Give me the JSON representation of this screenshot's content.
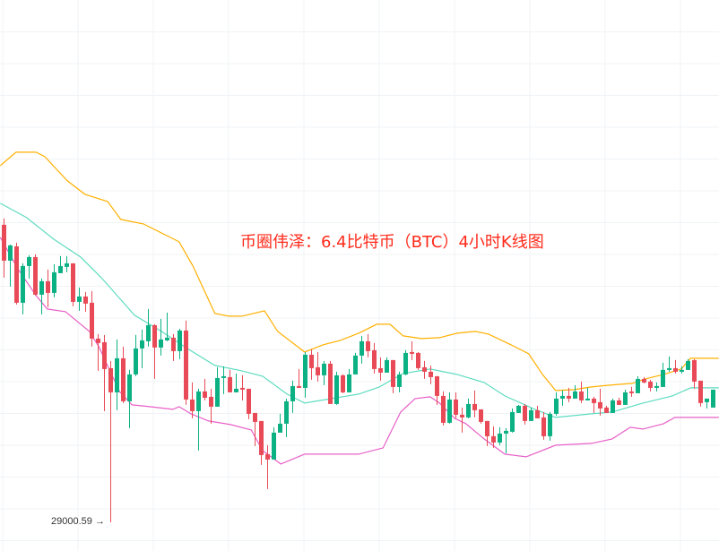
{
  "chart_data": {
    "type": "candlestick",
    "title": "币圈伟泽：6.4比特币（BTC）4小时K线图",
    "grid": true,
    "colors": {
      "up": "#0cb183",
      "down": "#e84b57",
      "upper_band": "#ffb000",
      "middle_band": "#5fdcc0",
      "lower_band": "#e860c8",
      "title": "#ff2a1a",
      "grid": "#f0f3f6"
    },
    "annotation": {
      "label": "29000.59",
      "arrow": "→",
      "candle_index": 17,
      "price": 29000.59
    },
    "candles_ohlc": [
      [
        30661,
        30696,
        30366,
        30461
      ],
      [
        30461,
        30551,
        30316,
        30546
      ],
      [
        30541,
        30561,
        30216,
        30226
      ],
      [
        30226,
        30446,
        30161,
        30431
      ],
      [
        30431,
        30491,
        30361,
        30481
      ],
      [
        30481,
        30496,
        30266,
        30271
      ],
      [
        30271,
        30361,
        30161,
        30346
      ],
      [
        30346,
        30411,
        30201,
        30281
      ],
      [
        30281,
        30441,
        30256,
        30396
      ],
      [
        30391,
        30486,
        30391,
        30431
      ],
      [
        30426,
        30486,
        30396,
        30446
      ],
      [
        30446,
        30446,
        30206,
        30231
      ],
      [
        30231,
        30311,
        30181,
        30261
      ],
      [
        30261,
        30286,
        30176,
        30221
      ],
      [
        30226,
        30291,
        29981,
        30026
      ],
      [
        30026,
        30051,
        29846,
        30001
      ],
      [
        30006,
        30046,
        29621,
        29856
      ],
      [
        29861,
        29901,
        29000.59,
        29726
      ],
      [
        29726,
        30021,
        29626,
        29916
      ],
      [
        29916,
        29981,
        29666,
        29676
      ],
      [
        29676,
        29851,
        29526,
        29826
      ],
      [
        29826,
        30046,
        29816,
        29971
      ],
      [
        29971,
        30076,
        29861,
        30016
      ],
      [
        30011,
        30191,
        29981,
        30101
      ],
      [
        30101,
        30106,
        29801,
        29976
      ],
      [
        29976,
        30136,
        29931,
        30021
      ],
      [
        30016,
        30171,
        30011,
        30031
      ],
      [
        30031,
        30051,
        29901,
        29956
      ],
      [
        29956,
        30081,
        29911,
        30071
      ],
      [
        30071,
        30126,
        29656,
        29686
      ],
      [
        29686,
        29781,
        29581,
        29621
      ],
      [
        29621,
        29746,
        29401,
        29731
      ],
      [
        29731,
        29801,
        29681,
        29696
      ],
      [
        29701,
        29746,
        29551,
        29646
      ],
      [
        29646,
        29866,
        29646,
        29806
      ],
      [
        29806,
        29871,
        29716,
        29816
      ],
      [
        29811,
        29851,
        29726,
        29726
      ],
      [
        29726,
        29831,
        29726,
        29746
      ],
      [
        29751,
        29821,
        29681,
        29741
      ],
      [
        29746,
        29746,
        29576,
        29606
      ],
      [
        29611,
        29611,
        29426,
        29561
      ],
      [
        29566,
        29566,
        29321,
        29376
      ],
      [
        29381,
        29431,
        29186,
        29351
      ],
      [
        29351,
        29531,
        29351,
        29501
      ],
      [
        29501,
        29606,
        29501,
        29551
      ],
      [
        29551,
        29691,
        29476,
        29676
      ],
      [
        29676,
        29791,
        29611,
        29761
      ],
      [
        29761,
        29856,
        29751,
        29751
      ],
      [
        29751,
        29951,
        29696,
        29936
      ],
      [
        29936,
        29966,
        29796,
        29861
      ],
      [
        29866,
        29951,
        29786,
        29821
      ],
      [
        29821,
        29901,
        29766,
        29886
      ],
      [
        29886,
        29901,
        29661,
        29661
      ],
      [
        29661,
        29841,
        29656,
        29821
      ],
      [
        29821,
        29826,
        29721,
        29726
      ],
      [
        29726,
        29856,
        29726,
        29826
      ],
      [
        29826,
        29946,
        29826,
        29931
      ],
      [
        29931,
        30041,
        29886,
        30011
      ],
      [
        30011,
        30051,
        29921,
        29956
      ],
      [
        29961,
        30001,
        29831,
        29856
      ],
      [
        29861,
        29921,
        29791,
        29836
      ],
      [
        29836,
        29921,
        29836,
        29906
      ],
      [
        29906,
        29906,
        29721,
        29756
      ],
      [
        29756,
        29841,
        29726,
        29826
      ],
      [
        29826,
        29961,
        29821,
        29946
      ],
      [
        29951,
        30011,
        29906,
        29941
      ],
      [
        29946,
        29951,
        29851,
        29861
      ],
      [
        29866,
        29901,
        29801,
        29841
      ],
      [
        29841,
        29876,
        29771,
        29811
      ],
      [
        29816,
        29816,
        29656,
        29706
      ],
      [
        29706,
        29731,
        29541,
        29556
      ],
      [
        29556,
        29726,
        29551,
        29686
      ],
      [
        29686,
        29726,
        29581,
        29601
      ],
      [
        29601,
        29641,
        29501,
        29586
      ],
      [
        29586,
        29691,
        29581,
        29661
      ],
      [
        29661,
        29736,
        29586,
        29626
      ],
      [
        29631,
        29631,
        29551,
        29561
      ],
      [
        29566,
        29566,
        29426,
        29481
      ],
      [
        29481,
        29536,
        29416,
        29446
      ],
      [
        29446,
        29531,
        29431,
        29496
      ],
      [
        29496,
        29526,
        29386,
        29511
      ],
      [
        29506,
        29636,
        29501,
        29616
      ],
      [
        29611,
        29656,
        29611,
        29651
      ],
      [
        29651,
        29661,
        29546,
        29566
      ],
      [
        29566,
        29641,
        29566,
        29626
      ],
      [
        29626,
        29651,
        29581,
        29581
      ],
      [
        29586,
        29616,
        29461,
        29481
      ],
      [
        29481,
        29616,
        29456,
        29606
      ],
      [
        29606,
        29726,
        29596,
        29691
      ],
      [
        29691,
        29736,
        29651,
        29706
      ],
      [
        29706,
        29751,
        29671,
        29691
      ],
      [
        29691,
        29766,
        29691,
        29731
      ],
      [
        29731,
        29786,
        29666,
        29681
      ],
      [
        29681,
        29751,
        29681,
        29691
      ],
      [
        29691,
        29701,
        29611,
        29666
      ],
      [
        29671,
        29746,
        29596,
        29636
      ],
      [
        29641,
        29651,
        29611,
        29611
      ],
      [
        29611,
        29691,
        29611,
        29681
      ],
      [
        29681,
        29696,
        29656,
        29656
      ],
      [
        29656,
        29741,
        29656,
        29726
      ],
      [
        29731,
        29756,
        29701,
        29721
      ],
      [
        29721,
        29816,
        29721,
        29801
      ],
      [
        29801,
        29811,
        29776,
        29781
      ],
      [
        29786,
        29796,
        29731,
        29751
      ],
      [
        29751,
        29781,
        29731,
        29761
      ],
      [
        29756,
        29891,
        29756,
        29851
      ],
      [
        29851,
        29926,
        29841,
        29861
      ],
      [
        29861,
        29906,
        29831,
        29841
      ],
      [
        29841,
        29871,
        29831,
        29851
      ],
      [
        29851,
        29911,
        29851,
        29901
      ],
      [
        29906,
        29911,
        29746,
        29786
      ],
      [
        29791,
        29791,
        29646,
        29666
      ],
      [
        29671,
        29691,
        29636,
        29691
      ],
      [
        29641,
        29741,
        29641,
        29741
      ]
    ],
    "bollinger": {
      "upper": [
        [
          -0.6,
          30991
        ],
        [
          1.9,
          31066
        ],
        [
          5.1,
          31066
        ],
        [
          6.5,
          31041
        ],
        [
          10.1,
          30906
        ],
        [
          12.9,
          30831
        ],
        [
          16.5,
          30791
        ],
        [
          18.6,
          30691
        ],
        [
          22.2,
          30666
        ],
        [
          27.9,
          30566
        ],
        [
          30.1,
          30431
        ],
        [
          33.6,
          30166
        ],
        [
          35.8,
          30151
        ],
        [
          37.9,
          30151
        ],
        [
          41.5,
          30181
        ],
        [
          43.6,
          30066
        ],
        [
          47.9,
          29951
        ],
        [
          50.8,
          29991
        ],
        [
          53.6,
          30016
        ],
        [
          56.5,
          30056
        ],
        [
          59.4,
          30106
        ],
        [
          61.5,
          30106
        ],
        [
          63.6,
          30041
        ],
        [
          66.5,
          30026
        ],
        [
          69.4,
          30031
        ],
        [
          72.2,
          30056
        ],
        [
          75.1,
          30066
        ],
        [
          77.2,
          30051
        ],
        [
          80.8,
          29991
        ],
        [
          83.6,
          29941
        ],
        [
          85.8,
          29826
        ],
        [
          87.9,
          29736
        ],
        [
          90.8,
          29741
        ],
        [
          93.6,
          29756
        ],
        [
          96.5,
          29766
        ],
        [
          100.1,
          29776
        ],
        [
          102.2,
          29801
        ],
        [
          105.1,
          29826
        ],
        [
          107.9,
          29856
        ],
        [
          109.4,
          29916
        ],
        [
          113.9,
          29916
        ]
      ],
      "middle": [
        [
          -0.6,
          30781
        ],
        [
          3.6,
          30701
        ],
        [
          7.9,
          30581
        ],
        [
          12.2,
          30481
        ],
        [
          15.5,
          30366
        ],
        [
          20.8,
          30156
        ],
        [
          25.1,
          30066
        ],
        [
          29.4,
          29966
        ],
        [
          33.6,
          29876
        ],
        [
          37.9,
          29846
        ],
        [
          41.2,
          29816
        ],
        [
          45.1,
          29716
        ],
        [
          47.9,
          29666
        ],
        [
          52.2,
          29691
        ],
        [
          56.5,
          29716
        ],
        [
          59.8,
          29756
        ],
        [
          63.6,
          29831
        ],
        [
          67.9,
          29856
        ],
        [
          72.2,
          29826
        ],
        [
          76.5,
          29781
        ],
        [
          79.8,
          29706
        ],
        [
          84.6,
          29631
        ],
        [
          87.9,
          29586
        ],
        [
          93.6,
          29606
        ],
        [
          96.9,
          29616
        ],
        [
          101.8,
          29666
        ],
        [
          106.5,
          29706
        ],
        [
          109.4,
          29751
        ],
        [
          113.9,
          29751
        ]
      ],
      "lower": [
        [
          -0.6,
          30591
        ],
        [
          2.2,
          30416
        ],
        [
          5.1,
          30266
        ],
        [
          6.9,
          30191
        ],
        [
          9.8,
          30176
        ],
        [
          13.6,
          30066
        ],
        [
          15.1,
          29981
        ],
        [
          18.4,
          29731
        ],
        [
          20.4,
          29656
        ],
        [
          23.2,
          29646
        ],
        [
          26.9,
          29631
        ],
        [
          27.9,
          29646
        ],
        [
          29.8,
          29606
        ],
        [
          32.6,
          29566
        ],
        [
          36.1,
          29546
        ],
        [
          39.4,
          29516
        ],
        [
          41.2,
          29401
        ],
        [
          44.1,
          29326
        ],
        [
          47.9,
          29381
        ],
        [
          52.2,
          29381
        ],
        [
          56.5,
          29381
        ],
        [
          60.4,
          29416
        ],
        [
          63.2,
          29616
        ],
        [
          65.5,
          29691
        ],
        [
          67.9,
          29701
        ],
        [
          69.4,
          29666
        ],
        [
          71.8,
          29581
        ],
        [
          73.6,
          29551
        ],
        [
          76.5,
          29466
        ],
        [
          79.8,
          29381
        ],
        [
          83.2,
          29366
        ],
        [
          87.9,
          29431
        ],
        [
          93.6,
          29441
        ],
        [
          96.9,
          29466
        ],
        [
          99.8,
          29531
        ],
        [
          101.8,
          29521
        ],
        [
          105.1,
          29551
        ],
        [
          106.9,
          29586
        ],
        [
          113.9,
          29586
        ]
      ]
    }
  }
}
